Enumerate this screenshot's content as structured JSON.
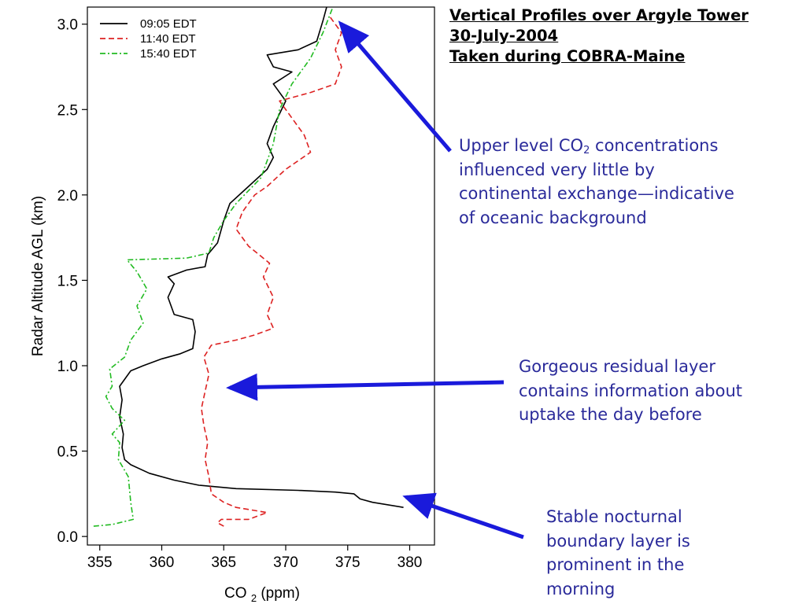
{
  "title": {
    "line1": "Vertical Profiles over Argyle Tower",
    "line2": "30-July-2004",
    "line3": "Taken during COBRA-Maine"
  },
  "annotations": {
    "upper": {
      "line1_pre": "Upper level CO",
      "line1_sub": "2",
      "line1_post": " concentrations",
      "line2": "influenced very little by",
      "line3": "continental exchange—indicative",
      "line4": "of oceanic background"
    },
    "residual": {
      "line1": "Gorgeous residual layer",
      "line2": "contains information about",
      "line3": "uptake the day before"
    },
    "stable": {
      "line1": "Stable nocturnal",
      "line2": "boundary layer is",
      "line3": "prominent in the",
      "line4": "morning"
    }
  },
  "colors": {
    "arrow": "#1a1adb",
    "annotation_text": "#2a2a9a",
    "s0905": "#000000",
    "s1140": "#dd2222",
    "s1540": "#22bb22"
  },
  "chart_data": {
    "type": "line",
    "xlabel_main": "CO",
    "xlabel_sub": "2",
    "xlabel_unit": "(ppm)",
    "ylabel": "Radar Altitude AGL (km)",
    "xlim": [
      354,
      382
    ],
    "ylim": [
      -0.05,
      3.1
    ],
    "xticks": [
      355,
      360,
      365,
      370,
      375,
      380
    ],
    "yticks": [
      0.0,
      0.5,
      1.0,
      1.5,
      2.0,
      2.5,
      3.0
    ],
    "xtick_labels": [
      "355",
      "360",
      "365",
      "370",
      "375",
      "380"
    ],
    "ytick_labels": [
      "0.0",
      "0.5",
      "1.0",
      "1.5",
      "2.0",
      "2.5",
      "3.0"
    ],
    "legend_position": "top-left",
    "grid": false,
    "series": [
      {
        "name": "09:05 EDT",
        "style": "solid",
        "points": [
          [
            379.5,
            0.17
          ],
          [
            377,
            0.2
          ],
          [
            376,
            0.22
          ],
          [
            375.5,
            0.25
          ],
          [
            374,
            0.26
          ],
          [
            371,
            0.27
          ],
          [
            366,
            0.28
          ],
          [
            363,
            0.3
          ],
          [
            361,
            0.33
          ],
          [
            359,
            0.37
          ],
          [
            357.5,
            0.42
          ],
          [
            357,
            0.45
          ],
          [
            356.8,
            0.52
          ],
          [
            356.9,
            0.6
          ],
          [
            356.6,
            0.7
          ],
          [
            356.8,
            0.8
          ],
          [
            356.6,
            0.88
          ],
          [
            357.5,
            0.97
          ],
          [
            358.5,
            1.0
          ],
          [
            360,
            1.04
          ],
          [
            361.5,
            1.07
          ],
          [
            362.5,
            1.1
          ],
          [
            362.7,
            1.2
          ],
          [
            362.5,
            1.27
          ],
          [
            361,
            1.3
          ],
          [
            360.5,
            1.4
          ],
          [
            361,
            1.48
          ],
          [
            360.5,
            1.52
          ],
          [
            362,
            1.56
          ],
          [
            363.5,
            1.58
          ],
          [
            363.7,
            1.65
          ],
          [
            364.5,
            1.72
          ],
          [
            365,
            1.85
          ],
          [
            365.5,
            1.95
          ],
          [
            367,
            2.05
          ],
          [
            368.5,
            2.15
          ],
          [
            369,
            2.22
          ],
          [
            368.5,
            2.3
          ],
          [
            369,
            2.4
          ],
          [
            370,
            2.55
          ],
          [
            369,
            2.65
          ],
          [
            370.5,
            2.72
          ],
          [
            369,
            2.75
          ],
          [
            368.5,
            2.82
          ],
          [
            371,
            2.85
          ],
          [
            372.5,
            2.9
          ],
          [
            373,
            3.02
          ],
          [
            373.3,
            3.1
          ]
        ]
      },
      {
        "name": "11:40 EDT",
        "style": "dashed",
        "points": [
          [
            365,
            0.06
          ],
          [
            364.5,
            0.08
          ],
          [
            364.8,
            0.1
          ],
          [
            367,
            0.1
          ],
          [
            368.5,
            0.14
          ],
          [
            366,
            0.17
          ],
          [
            365,
            0.2
          ],
          [
            364,
            0.25
          ],
          [
            363.8,
            0.35
          ],
          [
            363.5,
            0.45
          ],
          [
            363.7,
            0.55
          ],
          [
            363.4,
            0.65
          ],
          [
            363.2,
            0.75
          ],
          [
            363.5,
            0.85
          ],
          [
            363.8,
            0.95
          ],
          [
            363.4,
            1.05
          ],
          [
            364,
            1.12
          ],
          [
            366,
            1.15
          ],
          [
            367.5,
            1.18
          ],
          [
            369,
            1.22
          ],
          [
            368.5,
            1.3
          ],
          [
            369,
            1.4
          ],
          [
            368.2,
            1.52
          ],
          [
            368.7,
            1.6
          ],
          [
            367,
            1.7
          ],
          [
            366,
            1.8
          ],
          [
            366.5,
            1.9
          ],
          [
            367.5,
            2.0
          ],
          [
            368.5,
            2.05
          ],
          [
            370,
            2.15
          ],
          [
            372,
            2.25
          ],
          [
            371.5,
            2.35
          ],
          [
            370.5,
            2.45
          ],
          [
            369.5,
            2.55
          ],
          [
            372,
            2.6
          ],
          [
            374,
            2.65
          ],
          [
            374.5,
            2.75
          ],
          [
            374,
            2.85
          ],
          [
            374.5,
            2.95
          ],
          [
            373.5,
            3.05
          ]
        ]
      },
      {
        "name": "15:40 EDT",
        "style": "dashdot",
        "points": [
          [
            354.5,
            0.06
          ],
          [
            356,
            0.07
          ],
          [
            357.7,
            0.1
          ],
          [
            357.5,
            0.2
          ],
          [
            357.3,
            0.35
          ],
          [
            356.5,
            0.45
          ],
          [
            356.6,
            0.55
          ],
          [
            356,
            0.6
          ],
          [
            357,
            0.68
          ],
          [
            356,
            0.75
          ],
          [
            355.5,
            0.82
          ],
          [
            356,
            0.88
          ],
          [
            355.8,
            0.98
          ],
          [
            357,
            1.05
          ],
          [
            357.5,
            1.15
          ],
          [
            358.5,
            1.25
          ],
          [
            358,
            1.35
          ],
          [
            358.8,
            1.45
          ],
          [
            358,
            1.55
          ],
          [
            357.2,
            1.62
          ],
          [
            362,
            1.63
          ],
          [
            363.8,
            1.66
          ],
          [
            364.2,
            1.75
          ],
          [
            365,
            1.85
          ],
          [
            366,
            1.95
          ],
          [
            368,
            2.1
          ],
          [
            369,
            2.3
          ],
          [
            369.5,
            2.5
          ],
          [
            370.5,
            2.65
          ],
          [
            372,
            2.8
          ],
          [
            373,
            2.95
          ],
          [
            373.8,
            3.1
          ]
        ]
      }
    ]
  }
}
